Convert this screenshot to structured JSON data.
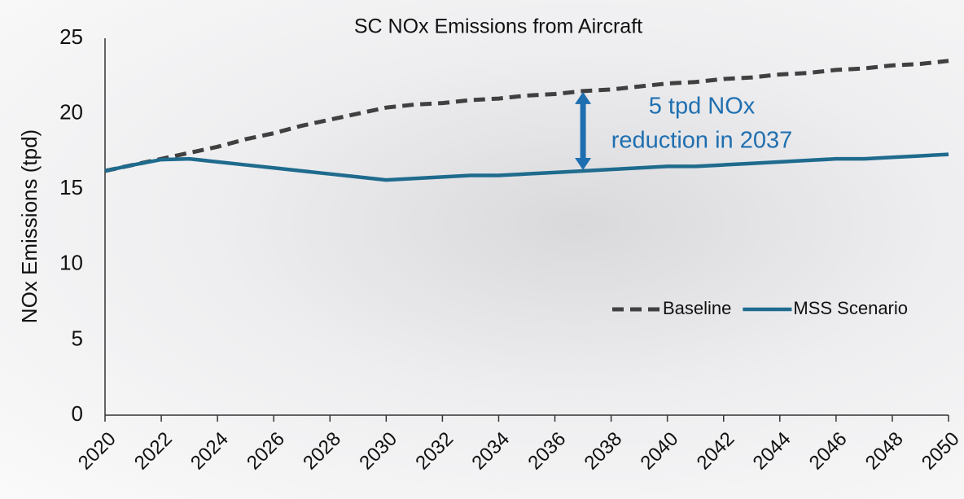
{
  "chart_data": {
    "type": "line",
    "title": "SC NOx Emissions from Aircraft",
    "ylabel": "NOx Emissions (tpd)",
    "x": [
      2020,
      2021,
      2022,
      2023,
      2024,
      2025,
      2026,
      2027,
      2028,
      2029,
      2030,
      2031,
      2032,
      2033,
      2034,
      2035,
      2036,
      2037,
      2038,
      2039,
      2040,
      2041,
      2042,
      2043,
      2044,
      2045,
      2046,
      2047,
      2048,
      2049,
      2050
    ],
    "series": [
      {
        "name": "Baseline",
        "color": "#404040",
        "dash": true,
        "values": [
          16.2,
          16.6,
          17.0,
          17.4,
          17.8,
          18.3,
          18.7,
          19.2,
          19.6,
          20.0,
          20.4,
          20.6,
          20.7,
          20.9,
          21.0,
          21.2,
          21.3,
          21.5,
          21.6,
          21.8,
          22.0,
          22.1,
          22.3,
          22.4,
          22.6,
          22.7,
          22.9,
          23.0,
          23.2,
          23.3,
          23.5
        ]
      },
      {
        "name": "MSS Scenario",
        "color": "#1f6b8e",
        "dash": false,
        "values": [
          16.2,
          16.6,
          16.95,
          17.0,
          16.8,
          16.6,
          16.4,
          16.2,
          16.0,
          15.8,
          15.6,
          15.7,
          15.8,
          15.9,
          15.9,
          16.0,
          16.1,
          16.2,
          16.3,
          16.4,
          16.5,
          16.5,
          16.6,
          16.7,
          16.8,
          16.9,
          17.0,
          17.0,
          17.1,
          17.2,
          17.3
        ]
      }
    ],
    "xlim": [
      2020,
      2050
    ],
    "xticks": [
      2020,
      2022,
      2024,
      2026,
      2028,
      2030,
      2032,
      2034,
      2036,
      2038,
      2040,
      2042,
      2044,
      2046,
      2048,
      2050
    ],
    "ylim": [
      0,
      25
    ],
    "yticks": [
      0,
      5,
      10,
      15,
      20,
      25
    ],
    "grid": false,
    "legend": "right",
    "annotation": [
      "5 tpd NOx",
      "reduction in 2037"
    ]
  }
}
